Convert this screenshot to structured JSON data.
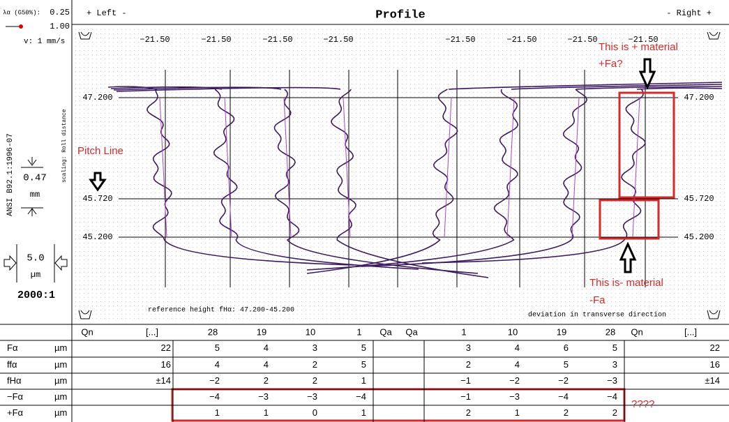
{
  "left_panel": {
    "lambda_label": "λα (G50%):",
    "lambda_value": "0.25",
    "filter_value": "1.00",
    "speed": "v:  1 mm/s",
    "standard": "ANSI B92.1:1996-07",
    "scaling": "scaling: Roll distance",
    "height_scale": "0.47",
    "height_unit": "mm",
    "deviation_scale": "5.0",
    "deviation_unit": "µm",
    "magnification": "2000:1"
  },
  "header": {
    "left": "+ Left -",
    "title": "Profile",
    "right": "- Right +"
  },
  "columns": [
    "−21.50",
    "−21.50",
    "−21.50",
    "−21.50",
    "−21.50",
    "−21.50",
    "−21.50",
    "−21.50"
  ],
  "levels": [
    "47.200",
    "45.720",
    "45.200"
  ],
  "footer": {
    "reference": "reference height fHα:  47.200-45.200",
    "direction": "deviation in transverse direction"
  },
  "annotations": {
    "pitch_line": "Pitch Line",
    "plus_material": "This is + material",
    "plus_fa": "+Fa?",
    "minus_material": "This is- material",
    "minus_fa": "-Fa",
    "question": "????"
  },
  "table": {
    "header": [
      "Qn",
      "[...]",
      "28",
      "19",
      "10",
      "1",
      "Qa",
      "Qa",
      "1",
      "10",
      "19",
      "28",
      "Qn",
      "[...]"
    ],
    "rows": [
      {
        "label": "Fα",
        "unit": "µm",
        "left_total": "22",
        "left": [
          "5",
          "4",
          "3",
          "5"
        ],
        "right": [
          "3",
          "4",
          "6",
          "5"
        ],
        "right_total": "22"
      },
      {
        "label": "ffα",
        "unit": "µm",
        "left_total": "16",
        "left": [
          "4",
          "4",
          "2",
          "5"
        ],
        "right": [
          "2",
          "4",
          "5",
          "3"
        ],
        "right_total": "16"
      },
      {
        "label": "fHα",
        "unit": "µm",
        "left_total": "±14",
        "left": [
          "−2",
          "2",
          "2",
          "1"
        ],
        "right": [
          "−1",
          "−2",
          "−2",
          "−3"
        ],
        "right_total": "±14"
      },
      {
        "label": "−Fα",
        "unit": "µm",
        "left": [
          "−4",
          "−3",
          "−3",
          "−4"
        ],
        "right": [
          "−1",
          "−3",
          "−4",
          "−4"
        ]
      },
      {
        "label": "+Fα",
        "unit": "µm",
        "left": [
          "1",
          "1",
          "0",
          "1"
        ],
        "right": [
          "2",
          "1",
          "2",
          "2"
        ]
      }
    ]
  }
}
